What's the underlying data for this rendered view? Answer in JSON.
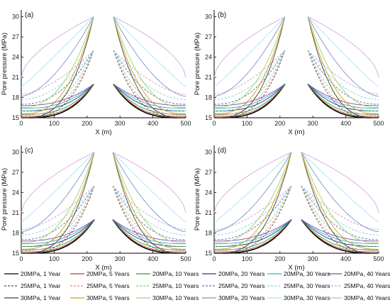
{
  "chart_data": {
    "type": "line",
    "layout": "2x2 panels",
    "panels": [
      {
        "label": "(a)",
        "gap": [
          220,
          280
        ]
      },
      {
        "label": "(b)",
        "gap": [
          215,
          285
        ]
      },
      {
        "label": "(c)",
        "gap": [
          222,
          278
        ]
      },
      {
        "label": "(d)",
        "gap": [
          235,
          265
        ]
      }
    ],
    "xlabel": "X (m)",
    "ylabel": "Pore pressure (MPa)",
    "xlim": [
      0,
      500
    ],
    "ylim": [
      15,
      31
    ],
    "xticks": [
      "0",
      "100",
      "200",
      "300",
      "400",
      "500"
    ],
    "yticks": [
      "15",
      "18",
      "21",
      "24",
      "27",
      "30"
    ],
    "grid": false,
    "legend_position": "bottom",
    "description": "Symmetric pore pressure profiles decaying from injection boundary value (20/25/30 MPa) towards far-field 15 MPa; far-field pressure rises with time.",
    "series": [
      {
        "name": "20MPa, 1 Year",
        "peak": 20,
        "far": 15.0,
        "color": "#000000",
        "dash": "solid"
      },
      {
        "name": "20MPa, 5 Years",
        "peak": 20,
        "far": 15.2,
        "color": "#c0392b",
        "dash": "solid"
      },
      {
        "name": "20MPa, 10 Years",
        "peak": 20,
        "far": 15.5,
        "color": "#2e9e2e",
        "dash": "solid"
      },
      {
        "name": "20MPa, 20 Years",
        "peak": 20,
        "far": 16.0,
        "color": "#1f3a8a",
        "dash": "solid"
      },
      {
        "name": "20MPa, 30 Years",
        "peak": 20,
        "far": 16.4,
        "color": "#29b6c9",
        "dash": "solid"
      },
      {
        "name": "20MPa, 40 Years",
        "peak": 20,
        "far": 16.8,
        "color": "#8e44ad",
        "dash": "solid"
      },
      {
        "name": "25MPa, 1 Year",
        "peak": 25,
        "far": 15.0,
        "color": "#555555",
        "dash": "dashed"
      },
      {
        "name": "25MPa, 5 Years",
        "peak": 25,
        "far": 15.4,
        "color": "#e88a8a",
        "dash": "dashed"
      },
      {
        "name": "25MPa, 10 Years",
        "peak": 25,
        "far": 16.0,
        "color": "#7ccf7c",
        "dash": "dashed"
      },
      {
        "name": "25MPa, 20 Years",
        "peak": 25,
        "far": 17.0,
        "color": "#5a6fb0",
        "dash": "dashed"
      },
      {
        "name": "25MPa, 30 Years",
        "peak": 25,
        "far": 17.7,
        "color": "#7fd6e0",
        "dash": "dashed"
      },
      {
        "name": "25MPa, 40 Years",
        "peak": 25,
        "far": 18.5,
        "color": "#c79ad8",
        "dash": "dashed"
      },
      {
        "name": "30MPa, 1 Year",
        "peak": 30,
        "far": 15.0,
        "color": "#444444",
        "dash": "solid"
      },
      {
        "name": "30MPa, 5 Years",
        "peak": 30,
        "far": 15.6,
        "color": "#d4a017",
        "dash": "solid"
      },
      {
        "name": "30MPa, 10 Years",
        "peak": 30,
        "far": 16.5,
        "color": "#9bd36b",
        "dash": "solid"
      },
      {
        "name": "30MPa, 20 Years",
        "peak": 30,
        "far": 18.2,
        "color": "#7f93c7",
        "dash": "solid"
      },
      {
        "name": "30MPa, 30 Years",
        "peak": 30,
        "far": 19.6,
        "color": "#a9e5ee",
        "dash": "solid"
      },
      {
        "name": "30MPa, 40 Years",
        "peak": 30,
        "far": 21.0,
        "color": "#d9a6e0",
        "dash": "solid"
      }
    ]
  }
}
